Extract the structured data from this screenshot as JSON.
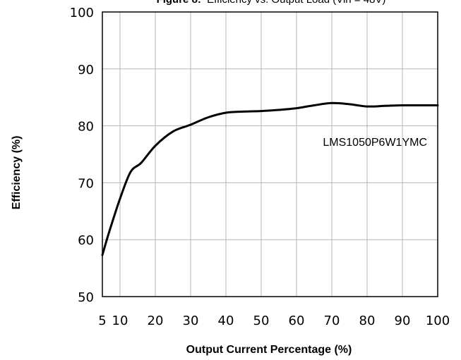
{
  "chart_data": {
    "type": "line",
    "title_bold": "Figure 8:",
    "title_rest": "Efficiency vs. Output Load (Vin = 48V)",
    "xlabel": "Output Current Percentage (%)",
    "ylabel": "Efficiency (%)",
    "xlim": [
      5,
      100
    ],
    "ylim": [
      50,
      100
    ],
    "x_ticks": [
      5,
      10,
      20,
      30,
      40,
      50,
      60,
      70,
      80,
      90,
      100
    ],
    "y_ticks": [
      50,
      60,
      70,
      80,
      90,
      100
    ],
    "grid": true,
    "series": [
      {
        "name": "LMS1050P6W1YMC",
        "color": "#000000",
        "x": [
          5,
          7,
          10,
          13,
          16,
          20,
          25,
          30,
          35,
          40,
          45,
          50,
          55,
          60,
          65,
          70,
          75,
          80,
          85,
          90,
          95,
          100
        ],
        "y": [
          57.3,
          61.5,
          67.2,
          71.9,
          73.5,
          76.5,
          79.0,
          80.2,
          81.5,
          82.3,
          82.5,
          82.6,
          82.8,
          83.1,
          83.6,
          84.0,
          83.8,
          83.4,
          83.5,
          83.6,
          83.6,
          83.6
        ]
      }
    ]
  }
}
